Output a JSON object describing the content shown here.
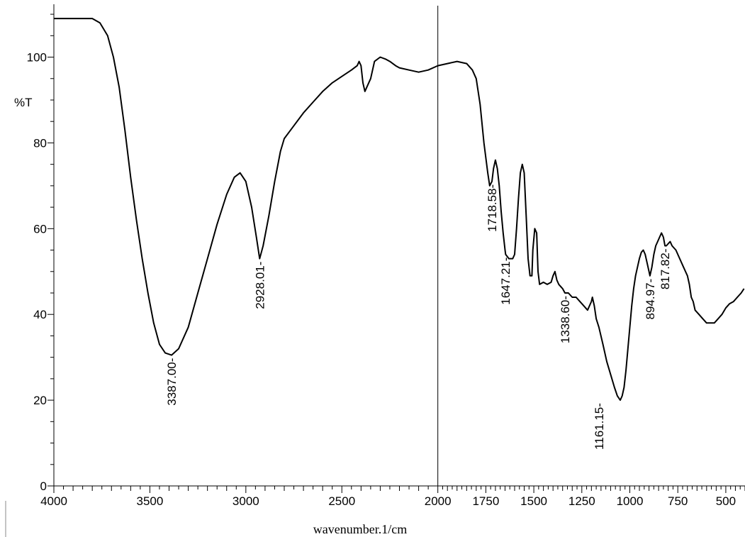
{
  "chart_data": {
    "type": "line",
    "title": "",
    "xlabel": "wavenumber.1/cm",
    "ylabel": "%T",
    "xlim": [
      4000,
      400
    ],
    "ylim": [
      0,
      112
    ],
    "x_ticks": [
      {
        "value": 4000,
        "label": "4000"
      },
      {
        "value": 3500,
        "label": "3500"
      },
      {
        "value": 3000,
        "label": "3000"
      },
      {
        "value": 2500,
        "label": "2500"
      },
      {
        "value": 2000,
        "label": "2000"
      },
      {
        "value": 1750,
        "label": "1750"
      },
      {
        "value": 1500,
        "label": "1500"
      },
      {
        "value": 1250,
        "label": "1250"
      },
      {
        "value": 1000,
        "label": "1000"
      },
      {
        "value": 750,
        "label": "750"
      },
      {
        "value": 500,
        "label": "500"
      }
    ],
    "y_ticks": [
      {
        "value": 0,
        "label": "0"
      },
      {
        "value": 20,
        "label": "20"
      },
      {
        "value": 40,
        "label": "40"
      },
      {
        "value": 60,
        "label": "60"
      },
      {
        "value": 80,
        "label": "80"
      },
      {
        "value": 100,
        "label": "100"
      }
    ],
    "grid": false,
    "series": [
      {
        "points": [
          [
            4000,
            109
          ],
          [
            3900,
            109
          ],
          [
            3800,
            109
          ],
          [
            3760,
            108
          ],
          [
            3720,
            105
          ],
          [
            3690,
            100
          ],
          [
            3660,
            93
          ],
          [
            3630,
            83
          ],
          [
            3600,
            72
          ],
          [
            3570,
            62
          ],
          [
            3540,
            53
          ],
          [
            3510,
            45
          ],
          [
            3480,
            38
          ],
          [
            3450,
            33
          ],
          [
            3420,
            31
          ],
          [
            3387,
            30.5
          ],
          [
            3350,
            32
          ],
          [
            3300,
            37
          ],
          [
            3250,
            45
          ],
          [
            3200,
            53
          ],
          [
            3150,
            61
          ],
          [
            3100,
            68
          ],
          [
            3060,
            72
          ],
          [
            3030,
            73
          ],
          [
            3000,
            71
          ],
          [
            2970,
            65
          ],
          [
            2945,
            58
          ],
          [
            2928,
            53
          ],
          [
            2910,
            56
          ],
          [
            2880,
            63
          ],
          [
            2850,
            71
          ],
          [
            2820,
            78
          ],
          [
            2800,
            81
          ],
          [
            2750,
            84
          ],
          [
            2700,
            87
          ],
          [
            2650,
            89.5
          ],
          [
            2600,
            92
          ],
          [
            2550,
            94
          ],
          [
            2500,
            95.5
          ],
          [
            2450,
            97
          ],
          [
            2420,
            98
          ],
          [
            2410,
            99
          ],
          [
            2400,
            98
          ],
          [
            2390,
            94
          ],
          [
            2380,
            92
          ],
          [
            2370,
            93
          ],
          [
            2350,
            95
          ],
          [
            2330,
            99
          ],
          [
            2300,
            100
          ],
          [
            2270,
            99.5
          ],
          [
            2250,
            99
          ],
          [
            2220,
            98
          ],
          [
            2200,
            97.5
          ],
          [
            2150,
            97
          ],
          [
            2100,
            96.5
          ],
          [
            2050,
            97
          ],
          [
            2000,
            98
          ],
          [
            1950,
            98.5
          ],
          [
            1900,
            99
          ],
          [
            1850,
            98.5
          ],
          [
            1820,
            97
          ],
          [
            1800,
            95
          ],
          [
            1780,
            89
          ],
          [
            1760,
            80
          ],
          [
            1740,
            73
          ],
          [
            1730,
            70
          ],
          [
            1718,
            71
          ],
          [
            1710,
            74
          ],
          [
            1700,
            76
          ],
          [
            1690,
            74
          ],
          [
            1680,
            70
          ],
          [
            1670,
            64
          ],
          [
            1660,
            59
          ],
          [
            1650,
            55
          ],
          [
            1647,
            54
          ],
          [
            1630,
            53
          ],
          [
            1610,
            53
          ],
          [
            1600,
            54
          ],
          [
            1590,
            60
          ],
          [
            1580,
            67
          ],
          [
            1570,
            73
          ],
          [
            1560,
            75
          ],
          [
            1550,
            73
          ],
          [
            1540,
            63
          ],
          [
            1530,
            53
          ],
          [
            1520,
            49
          ],
          [
            1510,
            49
          ],
          [
            1505,
            55
          ],
          [
            1495,
            60
          ],
          [
            1485,
            59
          ],
          [
            1478,
            50
          ],
          [
            1470,
            47
          ],
          [
            1450,
            47.5
          ],
          [
            1430,
            47
          ],
          [
            1410,
            47.5
          ],
          [
            1400,
            49
          ],
          [
            1390,
            50
          ],
          [
            1380,
            48
          ],
          [
            1370,
            47
          ],
          [
            1350,
            46
          ],
          [
            1338,
            45
          ],
          [
            1320,
            45
          ],
          [
            1300,
            44
          ],
          [
            1280,
            44
          ],
          [
            1260,
            43
          ],
          [
            1240,
            42
          ],
          [
            1220,
            41
          ],
          [
            1210,
            42
          ],
          [
            1200,
            43
          ],
          [
            1195,
            44
          ],
          [
            1185,
            42
          ],
          [
            1175,
            39
          ],
          [
            1161,
            37
          ],
          [
            1140,
            33
          ],
          [
            1120,
            29
          ],
          [
            1100,
            26
          ],
          [
            1080,
            23
          ],
          [
            1065,
            21
          ],
          [
            1050,
            20
          ],
          [
            1040,
            21
          ],
          [
            1030,
            23
          ],
          [
            1020,
            27
          ],
          [
            1010,
            32
          ],
          [
            1000,
            37
          ],
          [
            990,
            42
          ],
          [
            980,
            46
          ],
          [
            970,
            49
          ],
          [
            960,
            51
          ],
          [
            950,
            53
          ],
          [
            940,
            54.5
          ],
          [
            930,
            55
          ],
          [
            920,
            54
          ],
          [
            910,
            52
          ],
          [
            900,
            50
          ],
          [
            895,
            49
          ],
          [
            885,
            51
          ],
          [
            875,
            54
          ],
          [
            865,
            56
          ],
          [
            855,
            57
          ],
          [
            845,
            58
          ],
          [
            835,
            59
          ],
          [
            825,
            58
          ],
          [
            817,
            56
          ],
          [
            810,
            56
          ],
          [
            800,
            56.5
          ],
          [
            790,
            57
          ],
          [
            780,
            56
          ],
          [
            760,
            55
          ],
          [
            740,
            53
          ],
          [
            720,
            51
          ],
          [
            700,
            49
          ],
          [
            690,
            47
          ],
          [
            680,
            44
          ],
          [
            670,
            43
          ],
          [
            660,
            41
          ],
          [
            640,
            40
          ],
          [
            620,
            39
          ],
          [
            600,
            38
          ],
          [
            580,
            38
          ],
          [
            560,
            38
          ],
          [
            540,
            39
          ],
          [
            520,
            40
          ],
          [
            500,
            41.5
          ],
          [
            480,
            42.5
          ],
          [
            460,
            43
          ],
          [
            440,
            44
          ],
          [
            420,
            45
          ],
          [
            405,
            46
          ]
        ]
      }
    ],
    "peak_labels": [
      {
        "x": 3387.0,
        "y": 30.5,
        "label": "3387.00"
      },
      {
        "x": 2928.01,
        "y": 53,
        "label": "2928.01"
      },
      {
        "x": 1718.58,
        "y": 71,
        "label": "1718.58"
      },
      {
        "x": 1647.21,
        "y": 54,
        "label": "1647.21"
      },
      {
        "x": 1338.6,
        "y": 45,
        "label": "1338.60"
      },
      {
        "x": 1161.15,
        "y": 20,
        "label": "1161.15"
      },
      {
        "x": 894.97,
        "y": 49,
        "label": "894.97"
      },
      {
        "x": 817.82,
        "y": 56,
        "label": "817.82"
      }
    ],
    "cursor_line_x": 2000
  }
}
